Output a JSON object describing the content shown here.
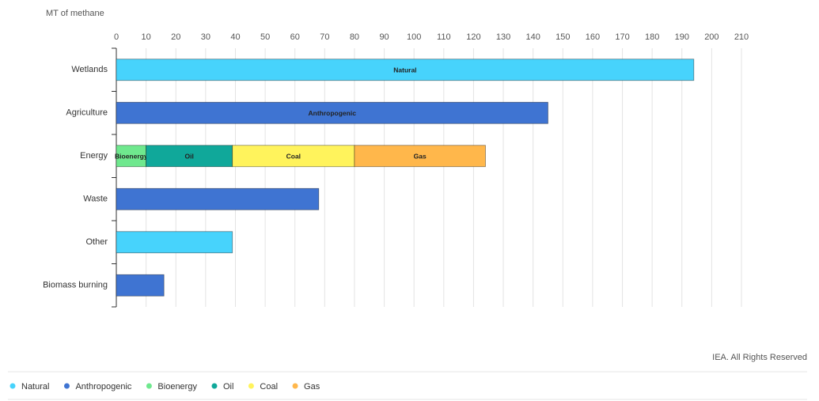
{
  "chart_data": {
    "type": "stacked-hbar",
    "axis_title": "MT of methane",
    "credit": "IEA. All Rights Reserved",
    "categories": [
      "Wetlands",
      "Agriculture",
      "Energy",
      "Waste",
      "Other",
      "Biomass burning"
    ],
    "series": [
      {
        "name": "Natural",
        "color": "#47d3fc",
        "values": [
          194,
          null,
          null,
          null,
          39,
          null
        ]
      },
      {
        "name": "Anthropogenic",
        "color": "#3f74d2",
        "values": [
          null,
          145,
          null,
          68,
          null,
          16
        ]
      },
      {
        "name": "Bioenergy",
        "color": "#6fe88e",
        "values": [
          null,
          null,
          10,
          null,
          null,
          null
        ]
      },
      {
        "name": "Oil",
        "color": "#10a89a",
        "values": [
          null,
          null,
          29,
          null,
          null,
          null
        ]
      },
      {
        "name": "Coal",
        "color": "#fff35c",
        "values": [
          null,
          null,
          41,
          null,
          null,
          null
        ]
      },
      {
        "name": "Gas",
        "color": "#ffb74b",
        "values": [
          null,
          null,
          44,
          null,
          null,
          null
        ]
      }
    ],
    "xlim": [
      0,
      210
    ],
    "xticks": [
      0,
      10,
      20,
      30,
      40,
      50,
      60,
      70,
      80,
      90,
      100,
      110,
      120,
      130,
      140,
      150,
      160,
      170,
      180,
      190,
      200,
      210
    ],
    "grid": true
  }
}
